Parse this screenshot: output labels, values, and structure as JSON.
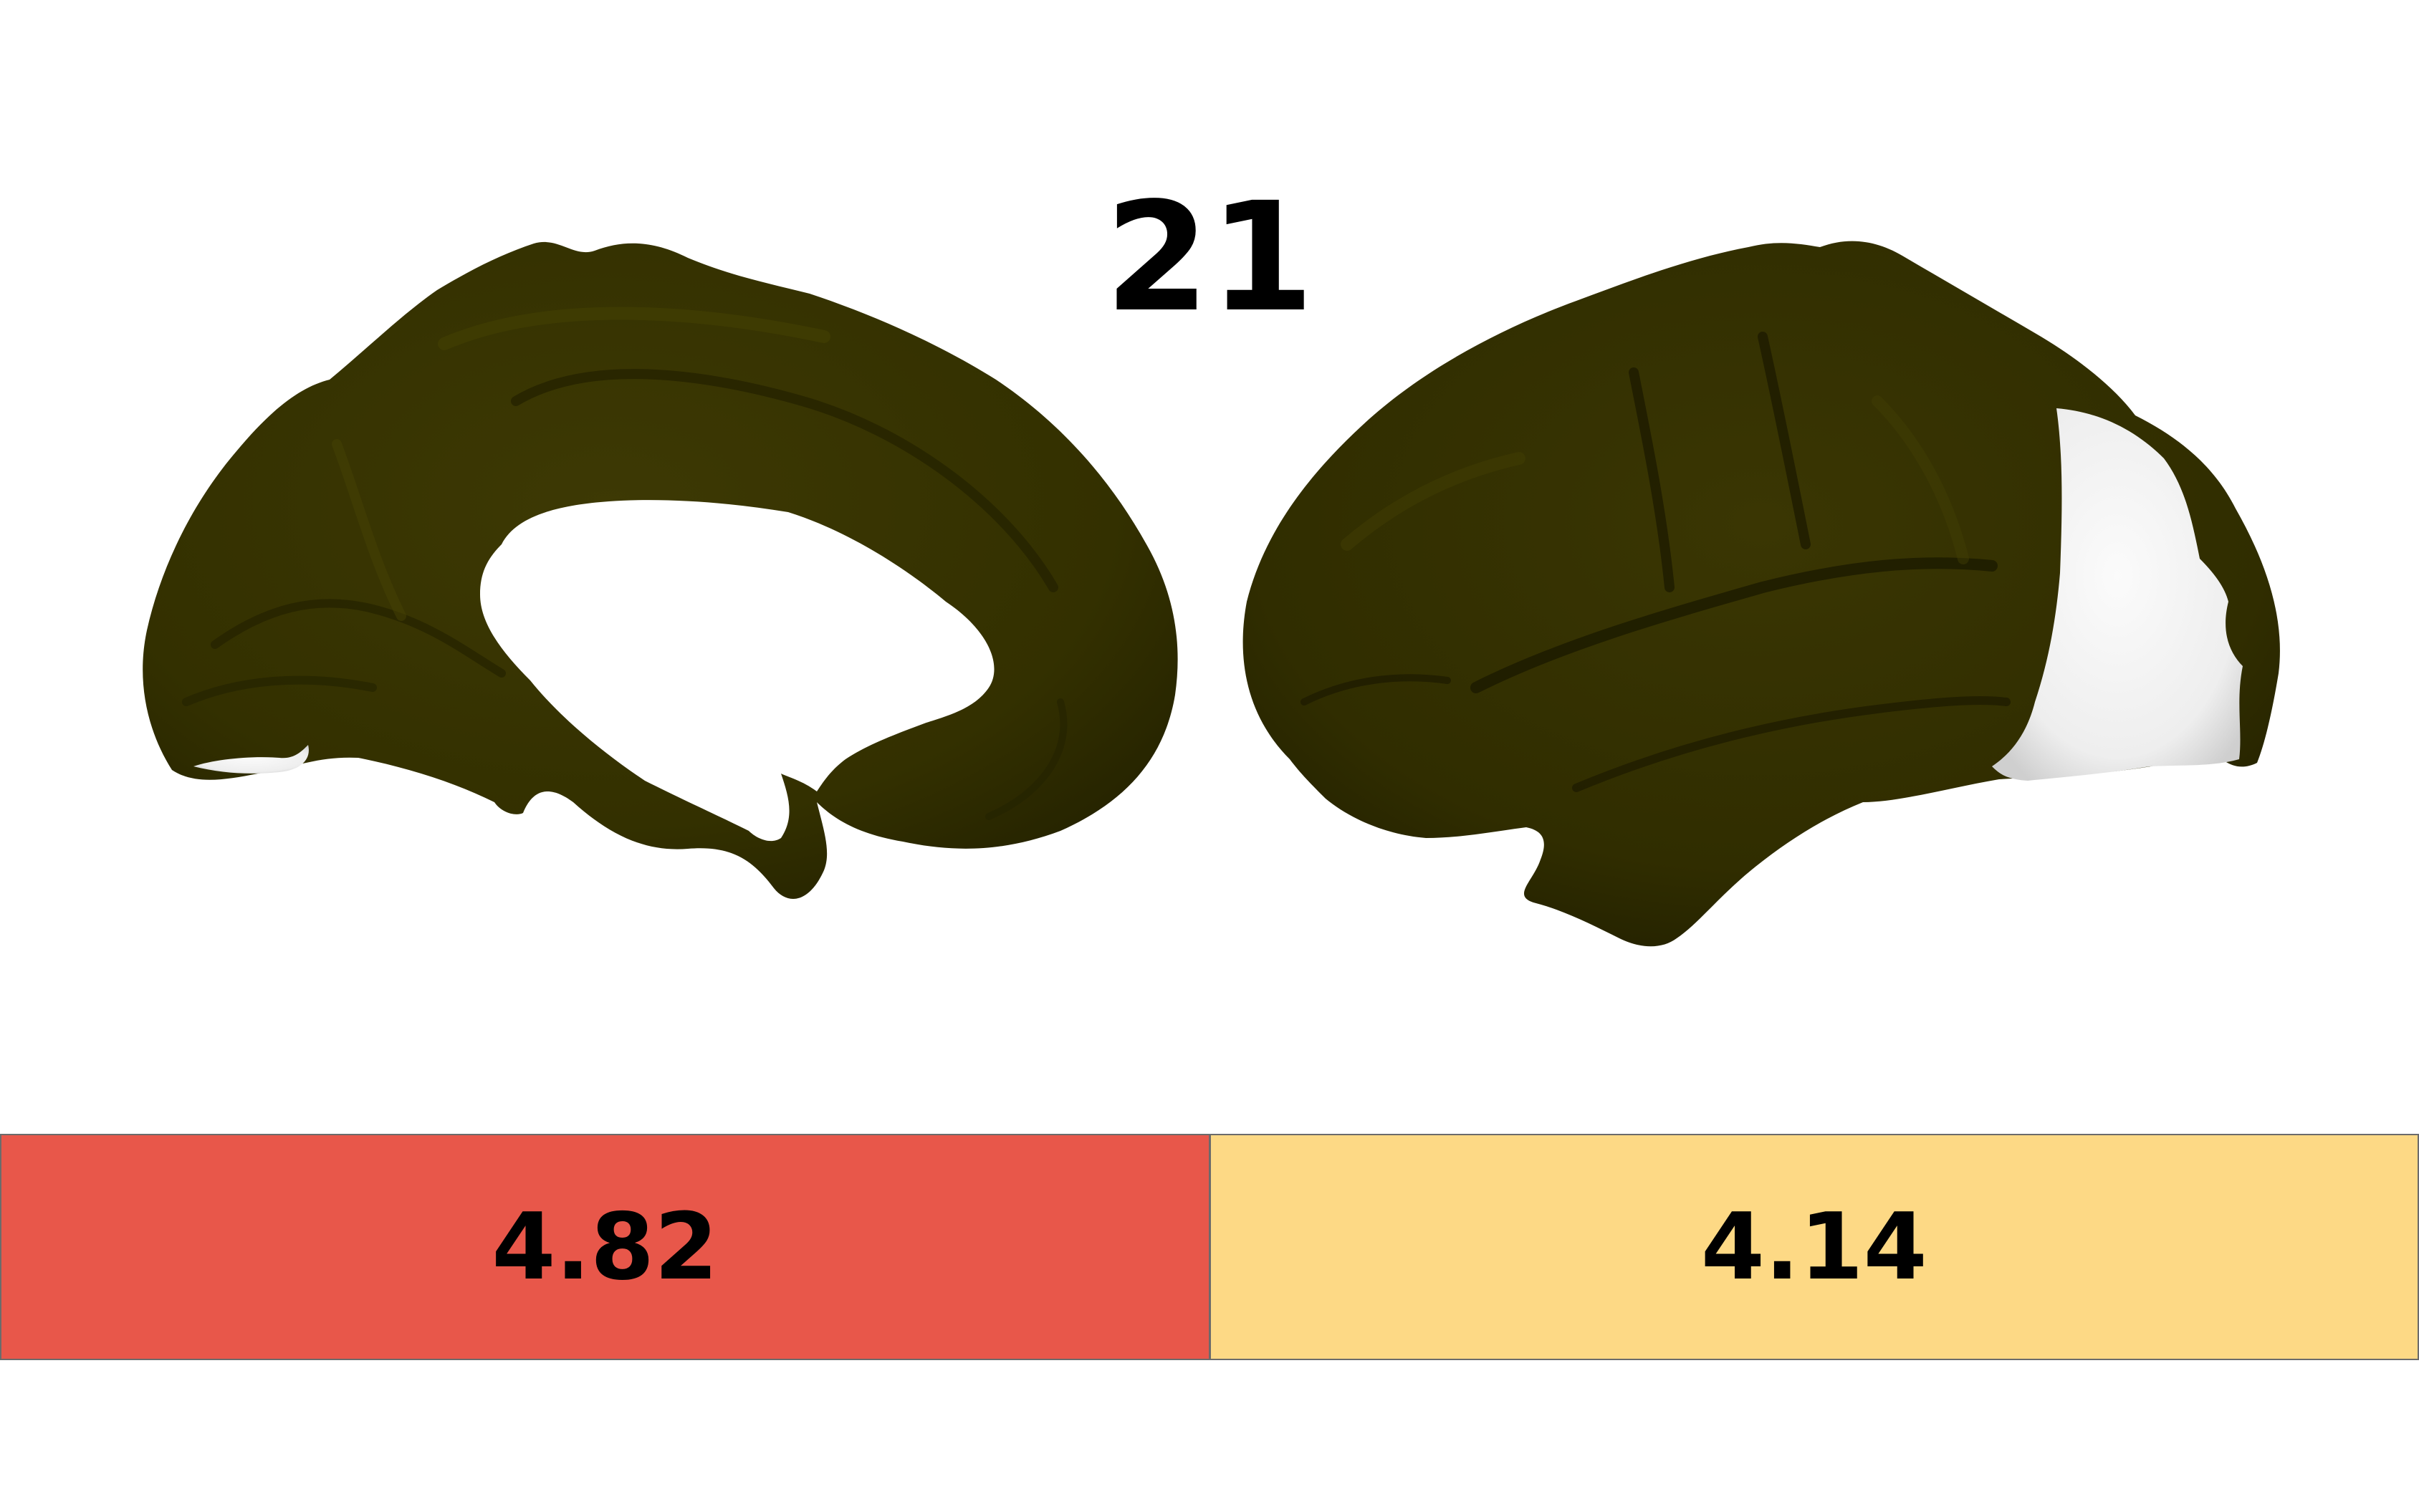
{
  "title": "21",
  "colors": {
    "cortex": "#333000",
    "cortex_dark": "#1e1c00",
    "cortex_highlight": "#4a4608",
    "unshaded_region": "#f2f2f2",
    "background": "#ffffff"
  },
  "views": [
    {
      "name": "medial-hemisphere-view"
    },
    {
      "name": "lateral-hemisphere-view"
    }
  ],
  "values": [
    {
      "label": "4.82",
      "color": "#e8574a"
    },
    {
      "label": "4.14",
      "color": "#fdd985"
    }
  ]
}
